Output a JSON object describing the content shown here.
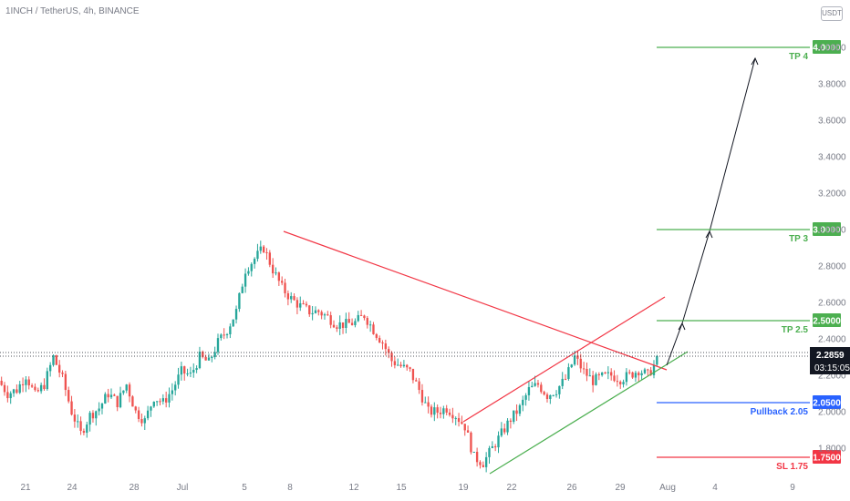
{
  "header": {
    "symbol_title": "1INCH / TetherUS, 4h, BINANCE"
  },
  "currency_badge": "USDT",
  "chart_data": {
    "type": "candlestick",
    "ylim": [
      1.65,
      4.2
    ],
    "y_ticks": [
      "4.0000",
      "3.8000",
      "3.6000",
      "3.4000",
      "3.2000",
      "3.0000",
      "2.8000",
      "2.6000",
      "2.4000",
      "2.2000",
      "2.0000",
      "1.8000"
    ],
    "x_ticks": [
      "21",
      "24",
      "28",
      "Jul",
      "5",
      "8",
      "12",
      "15",
      "19",
      "22",
      "26",
      "29",
      "Aug",
      "4",
      "9"
    ],
    "last_price": "2.2859",
    "countdown": "03:15:05",
    "levels": [
      {
        "name": "TP 4",
        "value": 4.0,
        "tag": "4.0000",
        "color": "#4caf50"
      },
      {
        "name": "TP 3",
        "value": 3.0,
        "tag": "3.0000",
        "color": "#4caf50"
      },
      {
        "name": "TP 2.5",
        "value": 2.5,
        "tag": "2.5000",
        "color": "#4caf50"
      },
      {
        "name": "Pullback 2.05",
        "value": 2.05,
        "tag": "2.0500",
        "color": "#2962ff"
      },
      {
        "name": "SL 1.75",
        "value": 1.75,
        "tag": "1.7500",
        "color": "#f23645"
      }
    ],
    "price_path": [
      2.17,
      2.1,
      2.12,
      2.2,
      2.09,
      2.15,
      2.3,
      2.18,
      2.0,
      1.88,
      1.98,
      2.02,
      2.1,
      2.05,
      2.15,
      2.0,
      1.95,
      2.08,
      2.05,
      2.12,
      2.22,
      2.2,
      2.3,
      2.27,
      2.38,
      2.45,
      2.55,
      2.78,
      2.84,
      2.9,
      2.78,
      2.68,
      2.62,
      2.58,
      2.55,
      2.55,
      2.52,
      2.48,
      2.48,
      2.49,
      2.53,
      2.45,
      2.38,
      2.28,
      2.25,
      2.22,
      2.12,
      2.0,
      2.0,
      2.02,
      1.98,
      1.92,
      1.75,
      1.72,
      1.8,
      1.88,
      1.96,
      2.02,
      2.12,
      2.15,
      2.09,
      2.12,
      2.18,
      2.3,
      2.22,
      2.17,
      2.19,
      2.2,
      2.18,
      2.2,
      2.23,
      2.2,
      2.28
    ],
    "colors": {
      "up": "#26a69a",
      "down": "#ef5350",
      "trend_red": "#f23645",
      "trend_green": "#4caf50",
      "arrow": "#131722"
    }
  }
}
